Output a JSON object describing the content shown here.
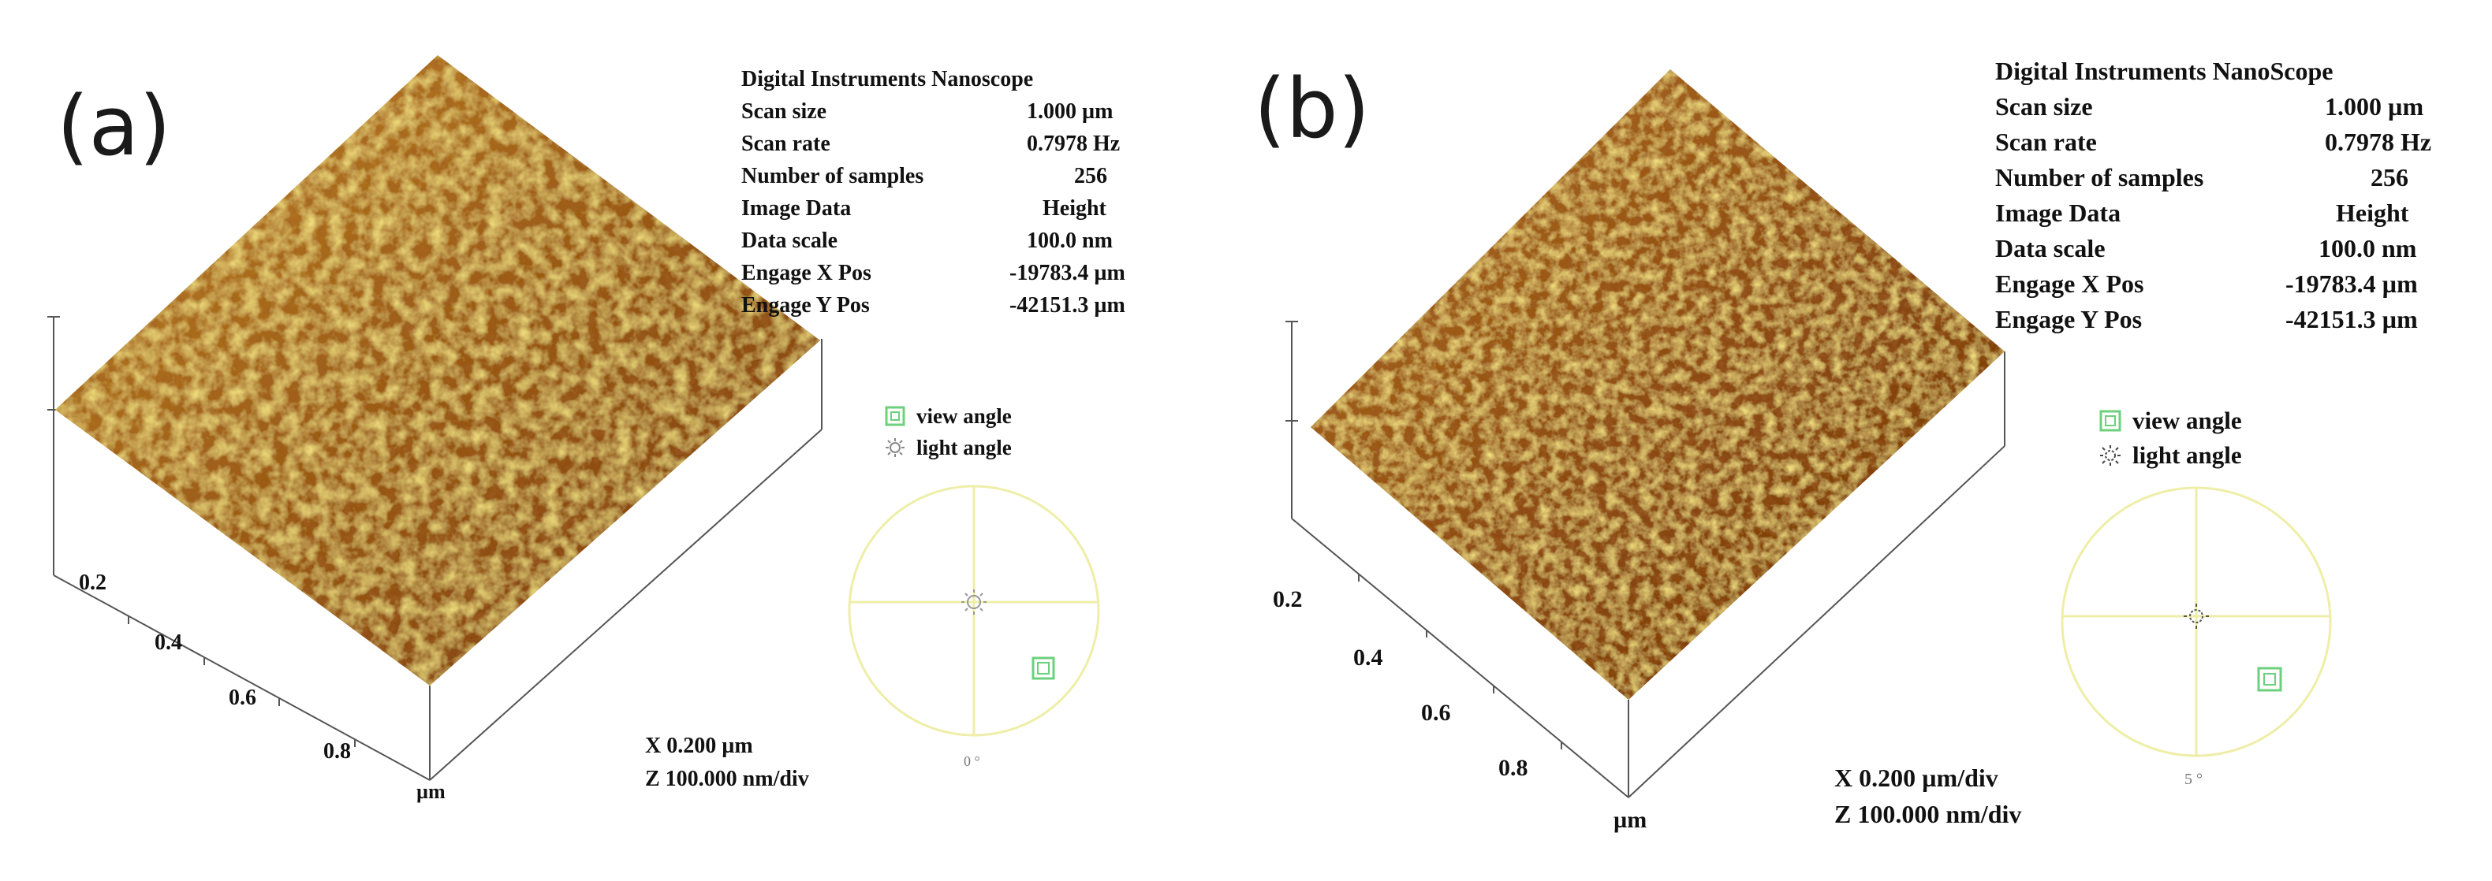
{
  "panels": [
    {
      "label": "(a)",
      "header": "Digital Instruments Nanoscope",
      "params": [
        {
          "name": "Scan size",
          "value": "1.000 µm"
        },
        {
          "name": "Scan rate",
          "value": "0.7978 Hz"
        },
        {
          "name": "Number of samples",
          "value": "256"
        },
        {
          "name": "Image Data",
          "value": "Height"
        },
        {
          "name": "Data scale",
          "value": "100.0 nm"
        },
        {
          "name": "Engage X Pos",
          "value": "-19783.4 µm"
        },
        {
          "name": "Engage Y Pos",
          "value": "-42151.3 µm"
        }
      ],
      "view_angle_label": "view angle",
      "light_angle_label": "light angle",
      "axis_ticks": [
        "0.2",
        "0.4",
        "0.6",
        "0.8"
      ],
      "axis_unit": "µm",
      "x_scale": "X 0.200 µm",
      "z_scale": "Z 100.000 nm/div",
      "dial_label": "0 °"
    },
    {
      "label": "(b)",
      "header": "Digital Instruments NanoScope",
      "params": [
        {
          "name": "Scan size",
          "value": "1.000 µm"
        },
        {
          "name": "Scan rate",
          "value": "0.7978 Hz"
        },
        {
          "name": "Number of samples",
          "value": "256"
        },
        {
          "name": "Image Data",
          "value": "Height"
        },
        {
          "name": "Data scale",
          "value": "100.0 nm"
        },
        {
          "name": "Engage X Pos",
          "value": "-19783.4 µm"
        },
        {
          "name": "Engage Y Pos",
          "value": "-42151.3 µm"
        }
      ],
      "view_angle_label": "view angle",
      "light_angle_label": "light angle",
      "axis_ticks": [
        "0.2",
        "0.4",
        "0.6",
        "0.8"
      ],
      "axis_unit": "µm",
      "x_scale": "X 0.200 µm/div",
      "z_scale": "Z 100.000 nm/div",
      "dial_label": "5 °"
    }
  ],
  "colors": {
    "surface_dark": "#6b2e0a",
    "surface_mid": "#b5761d",
    "surface_light": "#e8c640",
    "dial_line": "#eeeea8",
    "marker_green": "#6cd07c"
  }
}
